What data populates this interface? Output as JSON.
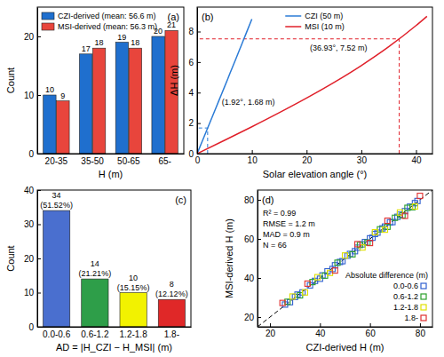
{
  "chart_data": [
    {
      "type": "bar",
      "title": "(a)",
      "x_label": "H (m)",
      "y_label": "Count",
      "categories": [
        "20-35",
        "35-50",
        "50-65",
        "65-"
      ],
      "series": [
        {
          "name": "CZI-derived (mean: 56.6 m)",
          "color": "#1f6fce",
          "values": [
            10,
            17,
            19,
            20
          ]
        },
        {
          "name": "MSI-derived (mean: 56.3 m)",
          "color": "#e8453c",
          "values": [
            9,
            18,
            18,
            21
          ]
        }
      ],
      "ylim": [
        0,
        25
      ],
      "yticks": [
        0,
        10,
        20
      ],
      "data_labels": true,
      "legend": "upper left"
    },
    {
      "type": "line",
      "title": "(b)",
      "x_label": "Solar elevation angle (°)",
      "y_label": "ΔH (m)",
      "series": [
        {
          "name": "CZI (50 m)",
          "color": "#2b7bd6",
          "x": [
            0,
            1,
            2,
            3,
            4,
            5,
            6,
            7,
            8,
            9,
            10
          ],
          "values": [
            0,
            0.87,
            1.75,
            2.62,
            3.5,
            4.37,
            5.26,
            6.14,
            7.03,
            7.92,
            8.82
          ]
        },
        {
          "name": "MSI (10 m)",
          "color": "#e0202a",
          "x": [
            0,
            5,
            10,
            15,
            20,
            25,
            30,
            35,
            40,
            42
          ],
          "values": [
            0,
            0.87,
            1.76,
            2.68,
            3.64,
            4.66,
            5.77,
            7.0,
            8.39,
            9.0
          ]
        }
      ],
      "xlim": [
        0,
        43
      ],
      "xticks": [
        0,
        10,
        20,
        30,
        40
      ],
      "ylim": [
        0,
        9.6
      ],
      "yticks": [
        0,
        2,
        4,
        6,
        8
      ],
      "legend": "upper center",
      "annotations": [
        {
          "x": 1.92,
          "y": 1.68,
          "text": "(1.92°, 1.68 m)",
          "color": "#2b7bd6"
        },
        {
          "x": 36.93,
          "y": 7.52,
          "text": "(36.93°, 7.52 m)",
          "color": "#e0202a"
        }
      ]
    },
    {
      "type": "bar",
      "title": "(c)",
      "x_label": "AD = |H_CZI − H_MSI| (m)",
      "y_label": "Count",
      "categories": [
        "0.0-0.6",
        "0.6-1.2",
        "1.2-1.8",
        "1.8-"
      ],
      "values": [
        34,
        14,
        10,
        8
      ],
      "colors": [
        "#4a6fcf",
        "#2e9e49",
        "#f2f200",
        "#e02828"
      ],
      "percent_labels": [
        "(51.52%)",
        "(21.21%)",
        "(15.15%)",
        "(12.12%)"
      ],
      "ylim": [
        0,
        40
      ],
      "yticks": [
        0,
        10,
        20,
        30,
        40
      ],
      "data_labels": true
    },
    {
      "type": "scatter",
      "title": "(d)",
      "x_label": "CZI-derived H (m)",
      "y_label": "MSI-derived H (m)",
      "annotations": [
        "R² = 0.99",
        "RMSE = 1.2 m",
        "MAD = 0.9 m",
        "N = 66"
      ],
      "legend_title": "Absolute difference (m)",
      "series": [
        {
          "name": "0.0-0.6",
          "color": "#3060d0",
          "x": [
            26,
            28,
            30,
            31,
            33,
            36,
            38,
            40,
            41,
            43,
            45,
            46,
            48,
            49,
            51,
            52,
            54,
            55,
            57,
            58,
            60,
            61,
            62,
            63,
            65,
            66,
            68,
            69,
            71,
            72,
            74,
            76,
            78,
            79
          ],
          "values": [
            26.4,
            27.6,
            30.3,
            31.5,
            32.6,
            36.2,
            38.5,
            39.6,
            41.3,
            43.4,
            44.6,
            46.5,
            48.2,
            48.6,
            51.4,
            52.3,
            53.7,
            55.5,
            57.2,
            58.4,
            60.3,
            60.6,
            62.5,
            63.2,
            65.4,
            66.3,
            68.5,
            68.6,
            71.3,
            72.4,
            74.2,
            76.5,
            78.3,
            79.4
          ]
        },
        {
          "name": "0.6-1.2",
          "color": "#2ca02c",
          "x": [
            27,
            32,
            37,
            42,
            47,
            53,
            56,
            59,
            64,
            67,
            70,
            73,
            75,
            77
          ],
          "values": [
            27.8,
            31.1,
            37.9,
            41.2,
            47.8,
            52.1,
            56.9,
            58.1,
            64.9,
            66.2,
            70.8,
            72.1,
            75.9,
            76.2
          ]
        },
        {
          "name": "1.2-1.8",
          "color": "#e0e000",
          "x": [
            29,
            34,
            39,
            44,
            50,
            57,
            62,
            66,
            72,
            78
          ],
          "values": [
            30.5,
            32.6,
            40.4,
            42.6,
            51.5,
            55.6,
            63.4,
            64.7,
            73.5,
            76.6
          ]
        },
        {
          "name": "1.8-",
          "color": "#e03030",
          "x": [
            25,
            35,
            46,
            55,
            60,
            67,
            74,
            80
          ],
          "values": [
            27.2,
            37.1,
            43.8,
            57.3,
            57.9,
            69.3,
            71.8,
            82.0
          ]
        }
      ],
      "xlim": [
        15,
        85
      ],
      "xticks": [
        20,
        40,
        60,
        80
      ],
      "ylim": [
        15,
        85
      ],
      "yticks": [
        20,
        40,
        60,
        80
      ],
      "legend": "lower right",
      "marker": "square"
    }
  ]
}
